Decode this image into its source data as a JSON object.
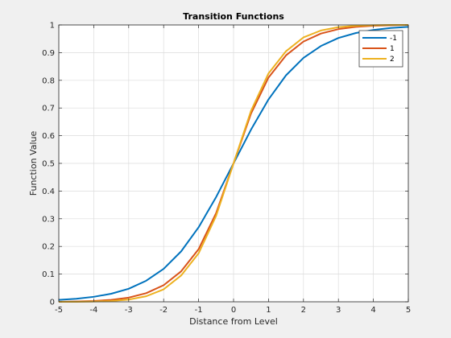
{
  "chart_data": {
    "type": "line",
    "title": "Transition Functions",
    "xlabel": "Distance from Level",
    "ylabel": "Function Value",
    "xlim": [
      -5,
      5
    ],
    "ylim": [
      0,
      1
    ],
    "xticks": [
      -5,
      -4,
      -3,
      -2,
      -1,
      0,
      1,
      2,
      3,
      4,
      5
    ],
    "yticks": [
      0,
      0.1,
      0.2,
      0.3,
      0.4,
      0.5,
      0.6,
      0.7,
      0.8,
      0.9,
      1
    ],
    "xtick_labels": [
      "-5",
      "-4",
      "-3",
      "-2",
      "-1",
      "0",
      "1",
      "2",
      "3",
      "4",
      "5"
    ],
    "ytick_labels": [
      "0",
      "0.1",
      "0.2",
      "0.3",
      "0.4",
      "0.5",
      "0.6",
      "0.7",
      "0.8",
      "0.9",
      "1"
    ],
    "grid": true,
    "legend_position": "top-right",
    "x": [
      -5,
      -4.5,
      -4,
      -3.5,
      -3,
      -2.5,
      -2,
      -1.5,
      -1,
      -0.5,
      0,
      0.5,
      1,
      1.5,
      2,
      2.5,
      3,
      3.5,
      4,
      4.5,
      5
    ],
    "series": [
      {
        "name": "-1",
        "color": "#0072bd",
        "values": [
          0.007,
          0.011,
          0.018,
          0.029,
          0.047,
          0.076,
          0.119,
          0.182,
          0.269,
          0.378,
          0.5,
          0.622,
          0.731,
          0.818,
          0.881,
          0.924,
          0.953,
          0.971,
          0.982,
          0.989,
          0.993
        ]
      },
      {
        "name": "1",
        "color": "#d95319",
        "values": [
          0.0,
          0.001,
          0.003,
          0.007,
          0.015,
          0.031,
          0.06,
          0.11,
          0.19,
          0.32,
          0.5,
          0.68,
          0.81,
          0.89,
          0.94,
          0.969,
          0.985,
          0.993,
          0.997,
          0.999,
          1.0
        ]
      },
      {
        "name": "2",
        "color": "#edb120",
        "values": [
          0.0,
          0.0,
          0.001,
          0.003,
          0.008,
          0.02,
          0.045,
          0.095,
          0.175,
          0.31,
          0.5,
          0.69,
          0.825,
          0.905,
          0.955,
          0.98,
          0.992,
          0.997,
          0.999,
          1.0,
          1.0
        ]
      }
    ]
  }
}
